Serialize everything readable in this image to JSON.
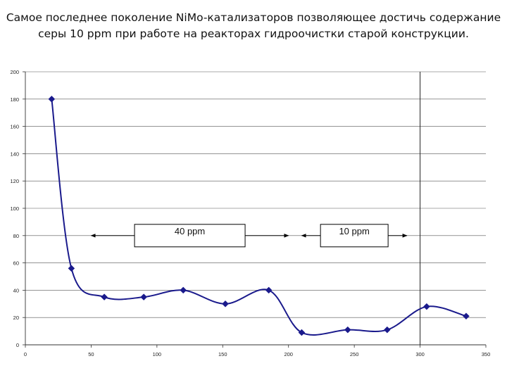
{
  "title": {
    "line1": "Самое последнее поколение NiMo-катализаторов позволяющее достичь содержание",
    "line2": "серы 10 ppm  при работе на реакторах гидроочистки старой конструкции."
  },
  "chart_data": {
    "type": "line",
    "title": "",
    "xlabel": "",
    "ylabel": "",
    "xlim": [
      0,
      350
    ],
    "ylim": [
      0,
      200
    ],
    "x_ticks": [
      0,
      50,
      100,
      150,
      200,
      250,
      300,
      350
    ],
    "y_ticks": [
      0,
      20,
      40,
      60,
      80,
      100,
      120,
      140,
      160,
      180,
      200
    ],
    "grid": "horizontal",
    "series": [
      {
        "x": [
          20,
          35,
          60,
          90,
          120,
          152,
          185,
          210,
          245,
          275,
          305,
          335
        ],
        "y": [
          180,
          56,
          35,
          35,
          40,
          30,
          40,
          9,
          11,
          11,
          28,
          21
        ],
        "color": "#1a1a8c"
      }
    ],
    "vertical_line_x": 300,
    "annotations": [
      {
        "label": "40 ppm",
        "arrow_from": 50,
        "arrow_to": 200,
        "y": 80
      },
      {
        "label": "10 ppm",
        "arrow_from": 210,
        "arrow_to": 290,
        "y": 80
      }
    ]
  }
}
